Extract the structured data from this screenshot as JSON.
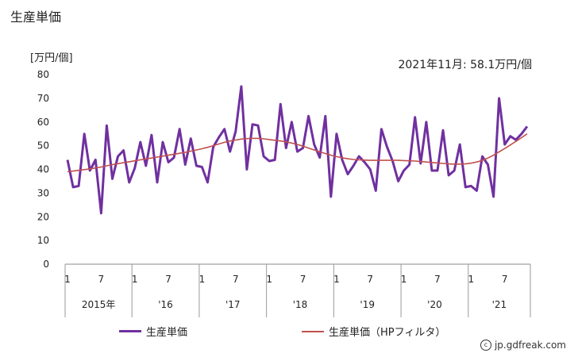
{
  "title": "生産単価",
  "unit_label": "[万円/個]",
  "annotation": "2021年11月: 58.1万円/個",
  "credit": "jp.gdfreak.com",
  "credit_icon": "copyright-icon",
  "chart_data": {
    "type": "line",
    "ylim": [
      0,
      80
    ],
    "yticks": [
      0,
      10,
      20,
      30,
      40,
      50,
      60,
      70,
      80
    ],
    "grid": false,
    "legend_position": "bottom",
    "month_tick_labels": [
      "1",
      "7",
      "1",
      "7",
      "1",
      "7",
      "1",
      "7",
      "1",
      "7",
      "1",
      "7",
      "1",
      "7"
    ],
    "year_labels": [
      "2015年",
      "'16",
      "'17",
      "'18",
      "'19",
      "'20",
      "'21"
    ],
    "x": [
      "2015-01",
      "2015-02",
      "2015-03",
      "2015-04",
      "2015-05",
      "2015-06",
      "2015-07",
      "2015-08",
      "2015-09",
      "2015-10",
      "2015-11",
      "2015-12",
      "2016-01",
      "2016-02",
      "2016-03",
      "2016-04",
      "2016-05",
      "2016-06",
      "2016-07",
      "2016-08",
      "2016-09",
      "2016-10",
      "2016-11",
      "2016-12",
      "2017-01",
      "2017-02",
      "2017-03",
      "2017-04",
      "2017-05",
      "2017-06",
      "2017-07",
      "2017-08",
      "2017-09",
      "2017-10",
      "2017-11",
      "2017-12",
      "2018-01",
      "2018-02",
      "2018-03",
      "2018-04",
      "2018-05",
      "2018-06",
      "2018-07",
      "2018-08",
      "2018-09",
      "2018-10",
      "2018-11",
      "2018-12",
      "2019-01",
      "2019-02",
      "2019-03",
      "2019-04",
      "2019-05",
      "2019-06",
      "2019-07",
      "2019-08",
      "2019-09",
      "2019-10",
      "2019-11",
      "2019-12",
      "2020-01",
      "2020-02",
      "2020-03",
      "2020-04",
      "2020-05",
      "2020-06",
      "2020-07",
      "2020-08",
      "2020-09",
      "2020-10",
      "2020-11",
      "2020-12",
      "2021-01",
      "2021-02",
      "2021-03",
      "2021-04",
      "2021-05",
      "2021-06",
      "2021-07",
      "2021-08",
      "2021-09",
      "2021-10",
      "2021-11"
    ],
    "series": [
      {
        "name": "生産単価",
        "color": "#7030a0",
        "values": [
          44,
          32.5,
          33,
          55,
          39.5,
          44,
          21.5,
          58.5,
          36,
          45.5,
          48,
          34.5,
          40.5,
          51.5,
          41.5,
          54.5,
          34.5,
          51.5,
          43,
          45,
          57,
          42,
          53,
          41.5,
          41,
          34.5,
          49.5,
          53.5,
          57,
          47.5,
          56,
          75,
          40,
          59,
          58.5,
          45.5,
          43.5,
          44,
          67.5,
          49,
          60,
          47.5,
          49,
          62.5,
          50.5,
          45,
          62.5,
          28.5,
          55,
          44,
          38,
          41.5,
          45.5,
          43,
          40,
          31,
          57,
          49.5,
          43.5,
          35,
          39.5,
          42,
          62,
          42.5,
          60,
          39.5,
          39.5,
          56.5,
          37.5,
          39.5,
          50.5,
          32.5,
          33,
          31,
          45.5,
          42,
          28.5,
          70,
          50.5,
          54,
          52.5,
          55,
          58.1
        ]
      },
      {
        "name": "生産単価（HPフィルタ）",
        "color": "#c0504d",
        "values": [
          39,
          39.3,
          39.6,
          39.9,
          40.2,
          40.6,
          41,
          41.5,
          42,
          42.4,
          42.8,
          43.2,
          43.6,
          44,
          44.4,
          44.8,
          45.2,
          45.6,
          46,
          46.4,
          46.8,
          47.2,
          47.7,
          48.2,
          48.7,
          49.3,
          50,
          50.7,
          51.4,
          52,
          52.4,
          52.8,
          53,
          53.1,
          53.1,
          52.9,
          52.6,
          52.3,
          52,
          51.6,
          51.1,
          50.5,
          49.8,
          49,
          48.2,
          47.4,
          46.7,
          46,
          45.4,
          44.9,
          44.5,
          44.2,
          44,
          43.9,
          43.8,
          43.8,
          43.8,
          43.8,
          43.8,
          43.8,
          43.7,
          43.6,
          43.5,
          43.3,
          43.1,
          42.9,
          42.7,
          42.5,
          42.3,
          42.2,
          42.2,
          42.3,
          42.6,
          43.1,
          43.8,
          44.8,
          46,
          47.4,
          48.8,
          50.3,
          51.8,
          53.4,
          55
        ]
      }
    ]
  }
}
